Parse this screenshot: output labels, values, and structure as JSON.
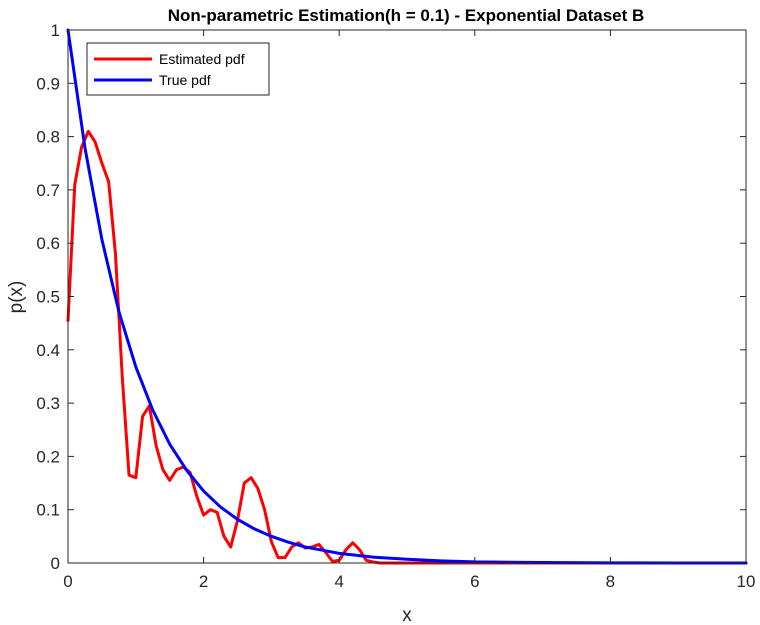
{
  "chart_data": {
    "type": "line",
    "title": "Non-parametric Estimation(h = 0.1) - Exponential Dataset B",
    "xlabel": "x",
    "ylabel": "p(x)",
    "xlim": [
      0,
      10
    ],
    "ylim": [
      0,
      1
    ],
    "xticks": [
      0,
      2,
      4,
      6,
      8,
      10
    ],
    "xtick_labels": [
      "0",
      "2",
      "4",
      "6",
      "8",
      "10"
    ],
    "yticks": [
      0,
      0.1,
      0.2,
      0.3,
      0.4,
      0.5,
      0.6,
      0.7,
      0.8,
      0.9,
      1
    ],
    "ytick_labels": [
      "0",
      "0.1",
      "0.2",
      "0.3",
      "0.4",
      "0.5",
      "0.6",
      "0.7",
      "0.8",
      "0.9",
      "1"
    ],
    "grid": false,
    "legend_position": "top-left",
    "series": [
      {
        "name": "Estimated pdf",
        "color": "#ff0000",
        "x": [
          0,
          0.1,
          0.2,
          0.3,
          0.4,
          0.5,
          0.6,
          0.7,
          0.8,
          0.9,
          1.0,
          1.1,
          1.2,
          1.3,
          1.4,
          1.5,
          1.6,
          1.7,
          1.8,
          1.9,
          2.0,
          2.1,
          2.2,
          2.3,
          2.4,
          2.5,
          2.6,
          2.7,
          2.8,
          2.9,
          3.0,
          3.1,
          3.2,
          3.3,
          3.4,
          3.5,
          3.6,
          3.7,
          3.8,
          3.9,
          4.0,
          4.1,
          4.2,
          4.3,
          4.4,
          4.5,
          4.6,
          4.7,
          4.8,
          5.0,
          6.0,
          7.0,
          8.0,
          9.0,
          10.0
        ],
        "y": [
          0.455,
          0.71,
          0.78,
          0.81,
          0.79,
          0.75,
          0.715,
          0.58,
          0.35,
          0.165,
          0.16,
          0.275,
          0.295,
          0.22,
          0.175,
          0.155,
          0.175,
          0.18,
          0.17,
          0.125,
          0.09,
          0.1,
          0.095,
          0.05,
          0.03,
          0.08,
          0.15,
          0.16,
          0.14,
          0.1,
          0.04,
          0.01,
          0.01,
          0.03,
          0.038,
          0.028,
          0.03,
          0.035,
          0.02,
          0.003,
          0.005,
          0.025,
          0.038,
          0.025,
          0.005,
          0.002,
          0.0,
          0.0,
          0.0,
          0.0,
          0.0,
          0.0,
          0.0,
          0.0,
          0.0
        ]
      },
      {
        "name": "True pdf",
        "color": "#0000ff",
        "function": "exp(-x)",
        "x": [
          0,
          0.25,
          0.5,
          0.75,
          1.0,
          1.25,
          1.5,
          1.75,
          2.0,
          2.25,
          2.5,
          2.75,
          3.0,
          3.25,
          3.5,
          3.75,
          4.0,
          4.5,
          5.0,
          5.5,
          6.0,
          6.5,
          7.0,
          8.0,
          9.0,
          10.0
        ],
        "y": [
          1.0,
          0.779,
          0.607,
          0.472,
          0.368,
          0.287,
          0.223,
          0.174,
          0.135,
          0.105,
          0.082,
          0.064,
          0.05,
          0.039,
          0.03,
          0.024,
          0.018,
          0.011,
          0.007,
          0.004,
          0.002,
          0.0015,
          0.0009,
          0.0003,
          0.0001,
          0.0
        ]
      }
    ]
  }
}
